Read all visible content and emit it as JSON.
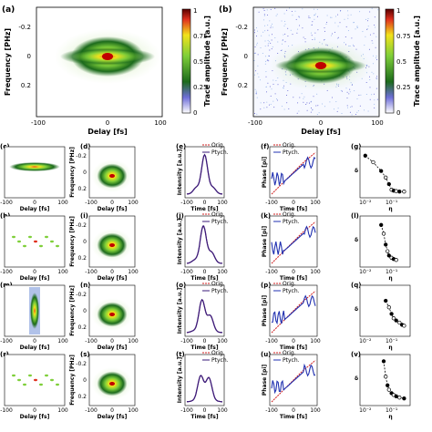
{
  "top": {
    "a": {
      "label": "(a)",
      "xlabel": "Delay [fs]",
      "ylabel": "Frequency [PHz]",
      "xticks": [
        "-100",
        "0",
        "100"
      ],
      "yticks": [
        "-0.2",
        "0",
        "0.2"
      ],
      "colorbar_label": "Trace amplitude [a.u.]",
      "colorbar_ticks": [
        "1",
        "0.75",
        "0.5",
        "0.25",
        "0"
      ]
    },
    "b": {
      "label": "(b)",
      "xlabel": "Delay [fs]",
      "ylabel": "Frequency [PHz]",
      "xticks": [
        "-100",
        "0",
        "100"
      ],
      "yticks": [
        "-0.2",
        "0",
        "0.2"
      ],
      "colorbar_label": "Trace amplitude [a.u.]",
      "colorbar_ticks": [
        "1",
        "0.75",
        "0.5",
        "0.25",
        "0"
      ]
    }
  },
  "rows": [
    {
      "labels": [
        "(c)",
        "(d)",
        "(e)",
        "(f)",
        "(g)"
      ],
      "col3_legend": [
        "Orig.",
        "Ptych."
      ],
      "col4_legend": [
        "Orig.",
        "Ptych."
      ]
    },
    {
      "labels": [
        "(h)",
        "(i)",
        "(j)",
        "(k)",
        "(l)"
      ],
      "col3_legend": [
        "Orig.",
        "Ptych."
      ],
      "col4_legend": [
        "Orig.",
        "Ptych."
      ]
    },
    {
      "labels": [
        "(m)",
        "(n)",
        "(o)",
        "(p)",
        "(q)"
      ],
      "col3_legend": [
        "Orig.",
        "Ptych."
      ],
      "col4_legend": [
        "Orig.",
        "Ptych."
      ]
    },
    {
      "labels": [
        "(r)",
        "(s)",
        "(t)",
        "(u)",
        "(v)"
      ],
      "col3_legend": [
        "Orig.",
        "Ptych."
      ],
      "col4_legend": [
        "Orig.",
        "Ptych."
      ]
    }
  ],
  "small_axes": {
    "trace_xlabel": "Delay [fs]",
    "trace_ylabel": "Frequency [PHz]",
    "trace_xticks": [
      "-100",
      "0",
      "100"
    ],
    "trace_yticks": [
      "-0.2",
      "0",
      "0.2"
    ],
    "intensity_ylabel": "Intensity [a.u.]",
    "time_xlabel": "Time [fs]",
    "time_xticks": [
      "-100",
      "0",
      "100"
    ],
    "phase_ylabel": "Phase [pi]",
    "delta_ylabel": "δ",
    "eta_xlabel": "η",
    "eta_ticks": [
      "10⁻²",
      "10⁻¹"
    ]
  },
  "chart_data": [
    {
      "type": "line",
      "panel": "(g)",
      "ylabel": "δ",
      "xlabel": "η",
      "xscale": "log",
      "x": [
        0.01,
        0.02,
        0.04,
        0.06,
        0.08,
        0.1,
        0.12,
        0.15,
        0.2,
        0.3
      ],
      "y": [
        0.9,
        0.75,
        0.55,
        0.4,
        0.25,
        0.12,
        0.1,
        0.09,
        0.08,
        0.08
      ]
    },
    {
      "type": "line",
      "panel": "(l)",
      "ylabel": "δ",
      "xlabel": "η",
      "xscale": "log",
      "x": [
        0.04,
        0.05,
        0.06,
        0.07,
        0.08,
        0.1,
        0.12,
        0.15
      ],
      "y": [
        0.9,
        0.7,
        0.45,
        0.3,
        0.2,
        0.15,
        0.12,
        0.1
      ]
    },
    {
      "type": "line",
      "panel": "(q)",
      "ylabel": "δ",
      "xlabel": "η",
      "xscale": "log",
      "x": [
        0.06,
        0.08,
        0.1,
        0.12,
        0.15,
        0.2,
        0.25,
        0.3
      ],
      "y": [
        0.75,
        0.6,
        0.45,
        0.35,
        0.3,
        0.25,
        0.2,
        0.18
      ]
    },
    {
      "type": "line",
      "panel": "(v)",
      "ylabel": "δ",
      "xlabel": "η",
      "xscale": "log",
      "x": [
        0.05,
        0.06,
        0.07,
        0.08,
        0.1,
        0.12,
        0.15,
        0.2,
        0.3
      ],
      "y": [
        0.95,
        0.6,
        0.4,
        0.3,
        0.22,
        0.18,
        0.15,
        0.12,
        0.1
      ]
    }
  ]
}
